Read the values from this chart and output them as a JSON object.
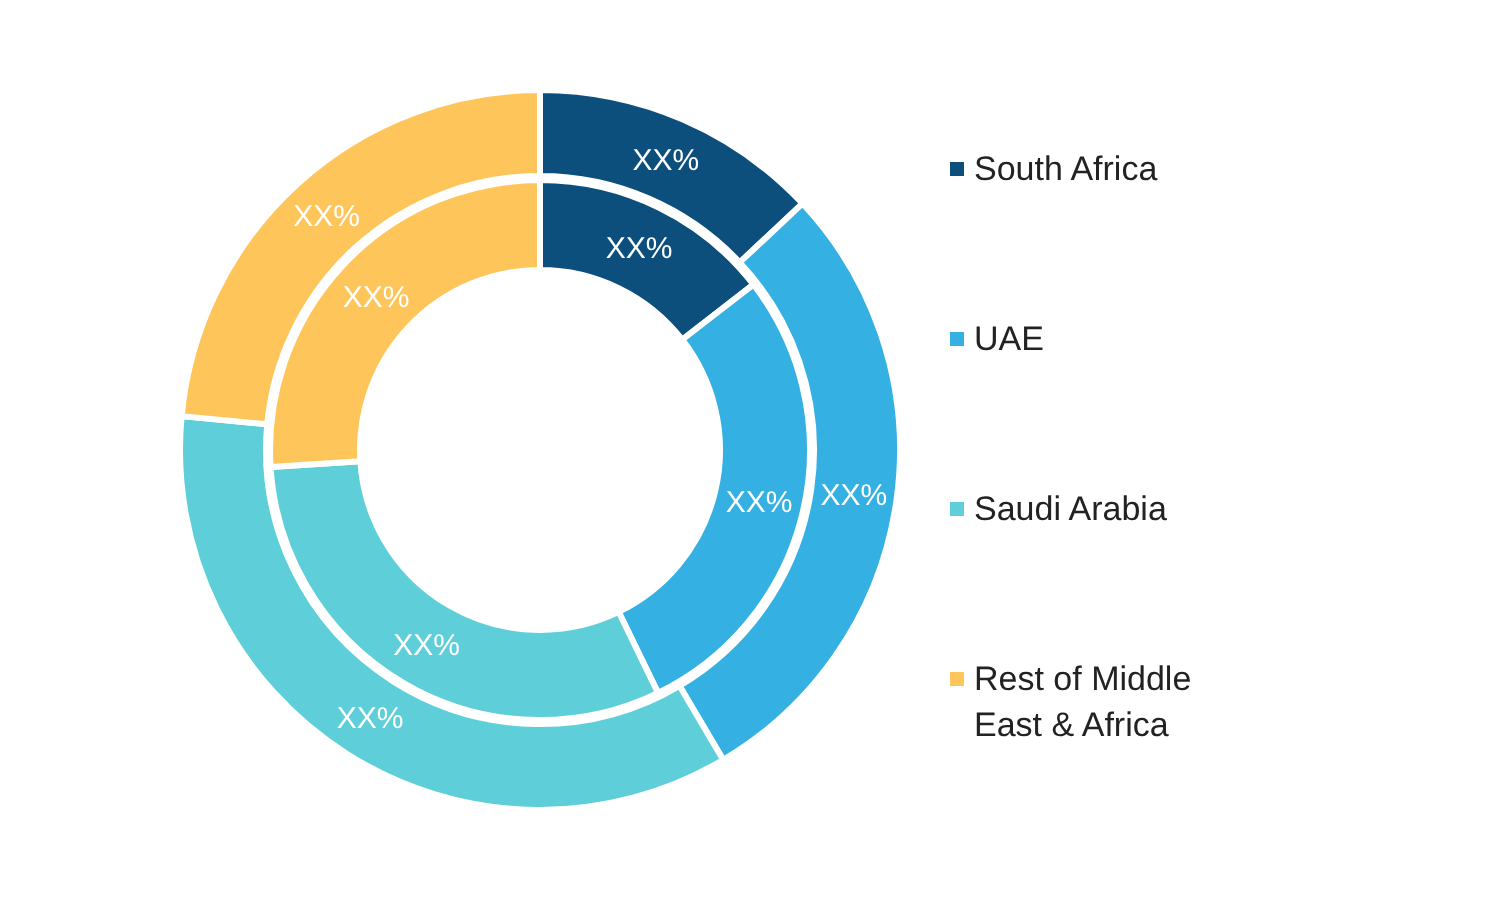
{
  "chart_data": {
    "type": "donut",
    "categories": [
      "South Africa",
      "UAE",
      "Saudi Arabia",
      "Rest of Middle East & Africa"
    ],
    "colors": [
      "#0d4f7c",
      "#35b0e3",
      "#5ecfd9",
      "#fec65a"
    ],
    "legend": "right",
    "series": [
      {
        "values": [
          14.5,
          28.3,
          31.2,
          26
        ],
        "value_labels": [
          "XX%",
          "XX%",
          "XX%",
          "XX%"
        ]
      },
      {
        "values": [
          13,
          28.5,
          35,
          23.5
        ],
        "value_labels": [
          "XX%",
          "XX%",
          "XX%",
          "XX%"
        ]
      }
    ]
  }
}
